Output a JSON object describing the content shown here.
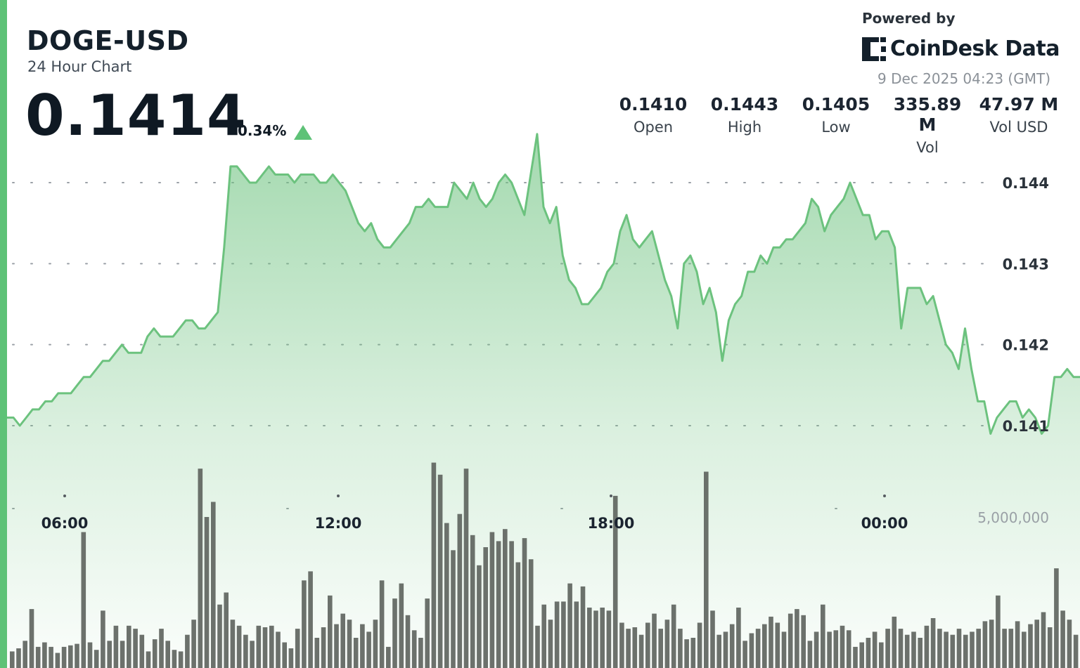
{
  "header": {
    "symbol": "DOGE-USD",
    "subtitle": "24 Hour Chart",
    "price": "0.1414",
    "change": "0.34%",
    "change_direction": "up",
    "powered_by": "Powered by",
    "brand": "CoinDesk Data",
    "timestamp": "9 Dec 2025 04:23 (GMT)"
  },
  "stats": [
    {
      "value": "0.1410",
      "label": "Open"
    },
    {
      "value": "0.1443",
      "label": "High"
    },
    {
      "value": "0.1405",
      "label": "Low"
    },
    {
      "value": "335.89 M",
      "label": "Vol"
    },
    {
      "value": "47.97 M",
      "label": "Vol USD"
    }
  ],
  "colors": {
    "accent": "#5ec277",
    "line": "#6cc27e",
    "volume_bar": "#5f655f",
    "text_dark": "#14202b",
    "text_muted": "#8b9198"
  },
  "chart_data": [
    {
      "type": "area",
      "series_role": "price",
      "ylim": [
        0.1406,
        0.1446
      ],
      "yticks": [
        0.141,
        0.142,
        0.143,
        0.144
      ],
      "ytick_labels": [
        "0.141",
        "0.142",
        "0.143",
        "0.144"
      ],
      "x_tick_labels": [
        "06:00",
        "12:00",
        "18:00",
        "00:00"
      ],
      "grid": "dotted horizontal",
      "values": [
        0.1411,
        0.1411,
        0.141,
        0.1411,
        0.1412,
        0.1412,
        0.1413,
        0.1413,
        0.1414,
        0.1414,
        0.1414,
        0.1415,
        0.1416,
        0.1416,
        0.1417,
        0.1418,
        0.1418,
        0.1419,
        0.142,
        0.1419,
        0.1419,
        0.1419,
        0.1421,
        0.1422,
        0.1421,
        0.1421,
        0.1421,
        0.1422,
        0.1423,
        0.1423,
        0.1422,
        0.1422,
        0.1423,
        0.1424,
        0.1432,
        0.1442,
        0.1442,
        0.1441,
        0.144,
        0.144,
        0.1441,
        0.1442,
        0.1441,
        0.1441,
        0.1441,
        0.144,
        0.1441,
        0.1441,
        0.1441,
        0.144,
        0.144,
        0.1441,
        0.144,
        0.1439,
        0.1437,
        0.1435,
        0.1434,
        0.1435,
        0.1433,
        0.1432,
        0.1432,
        0.1433,
        0.1434,
        0.1435,
        0.1437,
        0.1437,
        0.1438,
        0.1437,
        0.1437,
        0.1437,
        0.144,
        0.1439,
        0.1438,
        0.144,
        0.1438,
        0.1437,
        0.1438,
        0.144,
        0.1441,
        0.144,
        0.1438,
        0.1436,
        0.1441,
        0.1446,
        0.1437,
        0.1435,
        0.1437,
        0.1431,
        0.1428,
        0.1427,
        0.1425,
        0.1425,
        0.1426,
        0.1427,
        0.1429,
        0.143,
        0.1434,
        0.1436,
        0.1433,
        0.1432,
        0.1433,
        0.1434,
        0.1431,
        0.1428,
        0.1426,
        0.1422,
        0.143,
        0.1431,
        0.1429,
        0.1425,
        0.1427,
        0.1424,
        0.1418,
        0.1423,
        0.1425,
        0.1426,
        0.1429,
        0.1429,
        0.1431,
        0.143,
        0.1432,
        0.1432,
        0.1433,
        0.1433,
        0.1434,
        0.1435,
        0.1438,
        0.1437,
        0.1434,
        0.1436,
        0.1437,
        0.1438,
        0.144,
        0.1438,
        0.1436,
        0.1436,
        0.1433,
        0.1434,
        0.1434,
        0.1432,
        0.1422,
        0.1427,
        0.1427,
        0.1427,
        0.1425,
        0.1426,
        0.1423,
        0.142,
        0.1419,
        0.1417,
        0.1422,
        0.1417,
        0.1413,
        0.1413,
        0.1409,
        0.1411,
        0.1412,
        0.1413,
        0.1413,
        0.1411,
        0.1412,
        0.1411,
        0.1409,
        0.141,
        0.1416,
        0.1416,
        0.1417,
        0.1416,
        0.1416
      ]
    },
    {
      "type": "bar",
      "series_role": "volume",
      "ylim": [
        0,
        7000000
      ],
      "yticks": [
        5000000
      ],
      "ytick_labels": [
        "5,000,000"
      ],
      "values": [
        550000,
        650000,
        900000,
        1950000,
        700000,
        850000,
        700000,
        500000,
        700000,
        750000,
        800000,
        4500000,
        850000,
        600000,
        1900000,
        900000,
        1400000,
        900000,
        1400000,
        1300000,
        1100000,
        550000,
        950000,
        1300000,
        900000,
        600000,
        550000,
        1100000,
        1600000,
        6600000,
        5000000,
        5500000,
        2100000,
        2500000,
        1600000,
        1400000,
        1100000,
        900000,
        1400000,
        1350000,
        1400000,
        1200000,
        850000,
        650000,
        1300000,
        2900000,
        3200000,
        1000000,
        1350000,
        2400000,
        1450000,
        1800000,
        1600000,
        1000000,
        1450000,
        1200000,
        1600000,
        2900000,
        700000,
        2300000,
        2800000,
        1750000,
        1250000,
        1000000,
        2300000,
        6800000,
        6400000,
        4800000,
        3900000,
        5100000,
        6600000,
        4400000,
        3400000,
        4000000,
        4500000,
        4200000,
        4600000,
        4200000,
        3500000,
        4300000,
        3600000,
        1400000,
        2100000,
        1600000,
        2200000,
        2200000,
        2800000,
        2200000,
        2700000,
        2000000,
        1900000,
        2000000,
        1900000,
        5700000,
        1500000,
        1300000,
        1350000,
        1100000,
        1500000,
        1800000,
        1300000,
        1600000,
        2100000,
        1300000,
        950000,
        1000000,
        1500000,
        6500000,
        1900000,
        1100000,
        1200000,
        1450000,
        2000000,
        900000,
        1150000,
        1300000,
        1450000,
        1700000,
        1500000,
        1200000,
        1800000,
        1950000,
        1750000,
        900000,
        1200000,
        2100000,
        1200000,
        1250000,
        1400000,
        1250000,
        700000,
        850000,
        1000000,
        1200000,
        850000,
        1300000,
        1700000,
        1300000,
        1100000,
        1200000,
        1000000,
        1400000,
        1650000,
        1300000,
        1200000,
        1100000,
        1300000,
        1100000,
        1200000,
        1300000,
        1550000,
        1600000,
        2400000,
        1300000,
        1300000,
        1550000,
        1200000,
        1450000,
        1600000,
        1850000,
        1350000,
        3300000,
        1900000,
        1600000,
        1100000
      ]
    }
  ]
}
